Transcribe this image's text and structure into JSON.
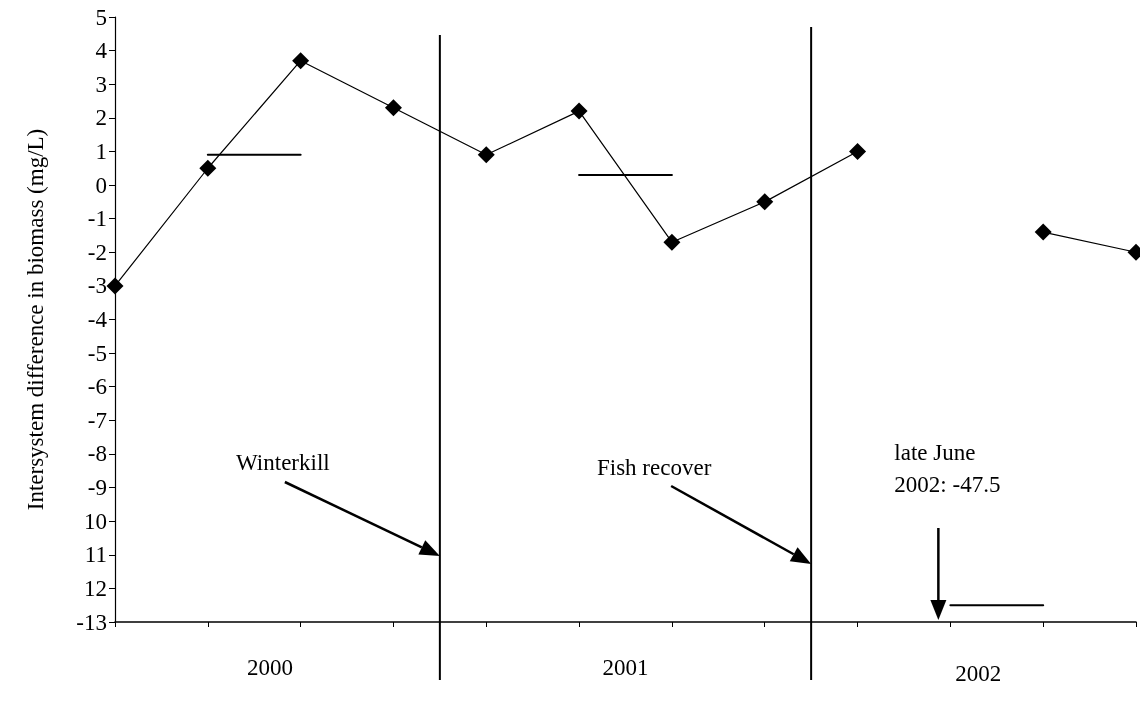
{
  "chart_data": {
    "type": "line",
    "ylabel": "Intersystem difference in biomass (mg/L)",
    "categories": [
      null,
      null,
      null,
      null,
      null,
      null,
      null,
      null,
      null,
      null,
      null,
      null
    ],
    "series": [
      {
        "color": "#000000",
        "values": [
          -3.0,
          0.5,
          3.7,
          2.3,
          0.9,
          2.2,
          -1.7,
          -0.5,
          1.0,
          null,
          null,
          null
        ]
      },
      {
        "color": "#000000",
        "values": [
          null,
          null,
          null,
          null,
          null,
          null,
          null,
          null,
          null,
          null,
          -1.4,
          -2.0
        ]
      },
      {
        "color": "#000000",
        "marker": "none",
        "values": [
          null,
          0.9,
          0.9,
          null,
          null,
          null,
          null,
          null,
          null,
          null,
          null,
          null
        ]
      },
      {
        "color": "#000000",
        "marker": "none",
        "values": [
          null,
          null,
          null,
          null,
          null,
          0.3,
          0.3,
          null,
          null,
          null,
          null,
          null
        ]
      },
      {
        "color": "#000000",
        "marker": "none",
        "values": [
          null,
          null,
          null,
          null,
          null,
          null,
          null,
          null,
          null,
          -12.5,
          -12.5,
          null
        ]
      }
    ],
    "marker": "diamond",
    "line_style": "solid",
    "grid": false,
    "ylim": [
      -13,
      5
    ],
    "yticks": [
      -13,
      {
        "value": -12,
        "label": "12"
      },
      {
        "value": -11,
        "label": "11"
      },
      {
        "value": -10,
        "label": "10"
      },
      -9,
      -8,
      -7,
      -6,
      -5,
      -4,
      -3,
      -2,
      -1,
      0,
      1,
      2,
      3,
      4,
      5
    ],
    "annotations": [
      "Winterkill",
      "Fish recover",
      "late June 2002: -47.5",
      "2000",
      "2001",
      "2002"
    ]
  }
}
